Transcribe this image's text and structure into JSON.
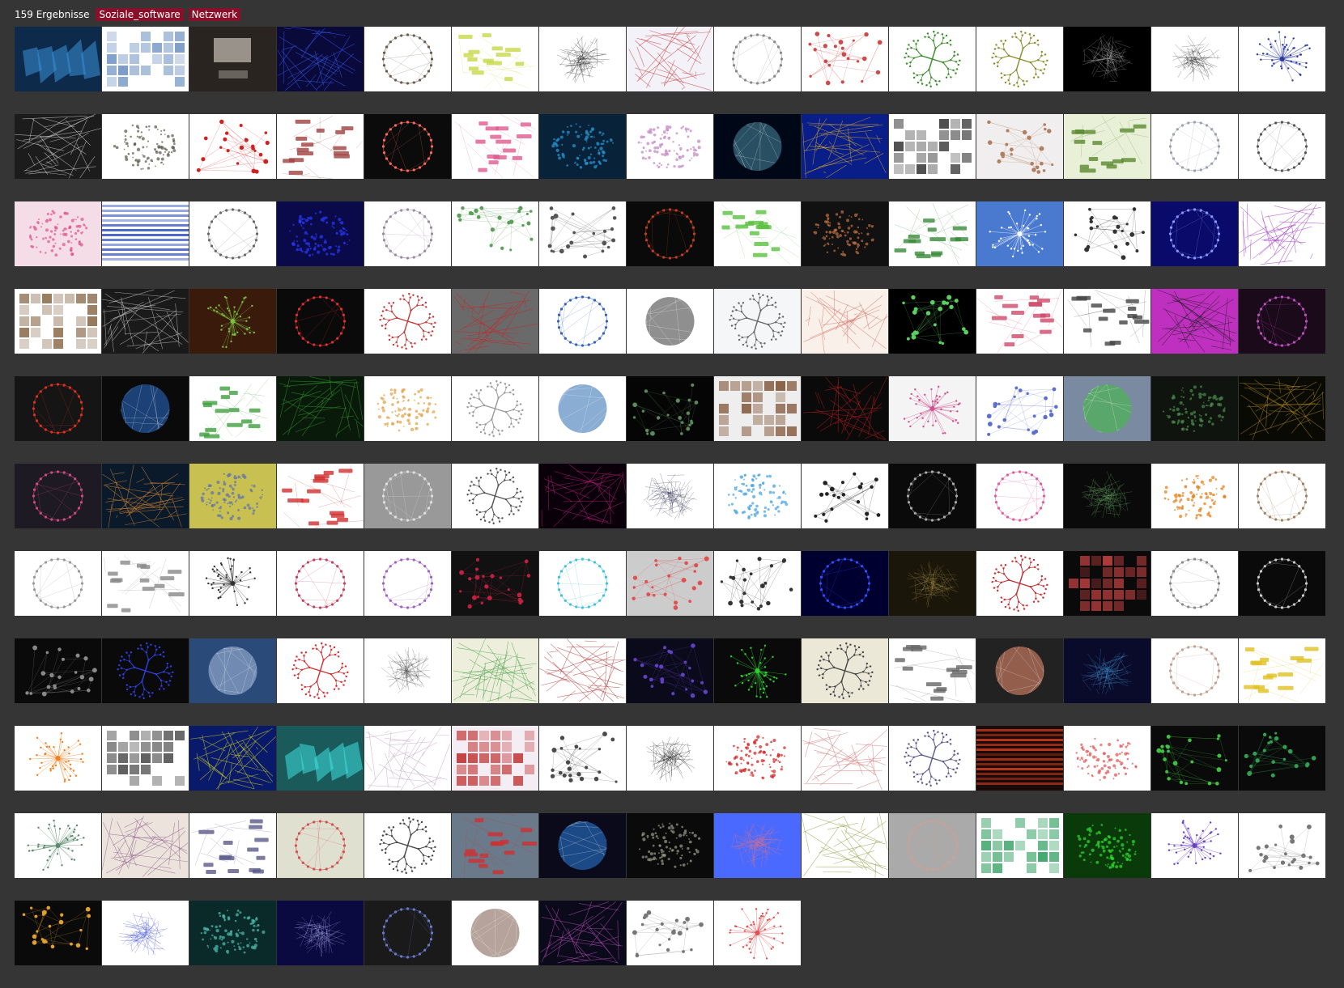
{
  "header": {
    "result_count": "159 Ergebnisse",
    "tags": [
      "Soziale_software",
      "Netzwerk"
    ]
  },
  "grid": {
    "columns": 15,
    "rows": [
      [
        {
          "bg": "#0d2a4a",
          "fg": "#3b8fd8",
          "kind": "blocks"
        },
        {
          "bg": "#ffffff",
          "fg": "#6a8fc0",
          "kind": "mosaic"
        },
        {
          "bg": "#2a2420",
          "fg": "#c9c2b8",
          "kind": "room"
        },
        {
          "bg": "#0a0a3a",
          "fg": "#3a5cff",
          "kind": "lines"
        },
        {
          "bg": "#ffffff",
          "fg": "#6a5a4a",
          "kind": "ring"
        },
        {
          "bg": "#ffffff",
          "fg": "#c8d84a",
          "kind": "boxes"
        },
        {
          "bg": "#ffffff",
          "fg": "#111111",
          "kind": "hairball"
        },
        {
          "bg": "#f2f2f8",
          "fg": "#c03030",
          "kind": "lines"
        },
        {
          "bg": "#ffffff",
          "fg": "#888888",
          "kind": "ring"
        },
        {
          "bg": "#ffffff",
          "fg": "#cc4a4a",
          "kind": "scatter"
        },
        {
          "bg": "#ffffff",
          "fg": "#3a8a2a",
          "kind": "tree"
        },
        {
          "bg": "#ffffff",
          "fg": "#8a8a2a",
          "kind": "tree"
        },
        {
          "bg": "#000000",
          "fg": "#bbbbbb",
          "kind": "hairball"
        },
        {
          "bg": "#ffffff",
          "fg": "#222222",
          "kind": "hairball"
        },
        {
          "bg": "#ffffff",
          "fg": "#2a3aa0",
          "kind": "star"
        }
      ],
      [
        {
          "bg": "#1c1c1c",
          "fg": "#dddddd",
          "kind": "lines"
        },
        {
          "bg": "#ffffff",
          "fg": "#555544",
          "kind": "blob"
        },
        {
          "bg": "#ffffff",
          "fg": "#d02020",
          "kind": "scatter"
        },
        {
          "bg": "#ffffff",
          "fg": "#a04040",
          "kind": "boxes"
        },
        {
          "bg": "#0b0b0b",
          "fg": "#ff6a5a",
          "kind": "ring"
        },
        {
          "bg": "#ffffff",
          "fg": "#e05a90",
          "kind": "boxes"
        },
        {
          "bg": "#08223a",
          "fg": "#2a9ad8",
          "kind": "blob"
        },
        {
          "bg": "#ffffff",
          "fg": "#c080c0",
          "kind": "blob"
        },
        {
          "bg": "#000818",
          "fg": "#4a8aa0",
          "kind": "globe"
        },
        {
          "bg": "#0a1e8a",
          "fg": "#e0b020",
          "kind": "lines"
        },
        {
          "bg": "#ffffff",
          "fg": "#3a3a3a",
          "kind": "mosaic"
        },
        {
          "bg": "#f0eeee",
          "fg": "#b08060",
          "kind": "scatter"
        },
        {
          "bg": "#e8f0d8",
          "fg": "#5a8a30",
          "kind": "boxes"
        },
        {
          "bg": "#ffffff",
          "fg": "#9aa0b0",
          "kind": "ring"
        },
        {
          "bg": "#ffffff",
          "fg": "#555555",
          "kind": "ring"
        }
      ],
      [
        {
          "bg": "#f4dde6",
          "fg": "#e0508a",
          "kind": "blob"
        },
        {
          "bg": "#ffffff",
          "fg": "#3050c0",
          "kind": "stripes"
        },
        {
          "bg": "#ffffff",
          "fg": "#666666",
          "kind": "ring"
        },
        {
          "bg": "#0a0a4a",
          "fg": "#2a3aff",
          "kind": "blob"
        },
        {
          "bg": "#ffffff",
          "fg": "#9a8aa0",
          "kind": "ring"
        },
        {
          "bg": "#ffffff",
          "fg": "#5aa05a",
          "kind": "scatter"
        },
        {
          "bg": "#ffffff",
          "fg": "#555555",
          "kind": "scatter"
        },
        {
          "bg": "#0a0a0a",
          "fg": "#c04020",
          "kind": "ring"
        },
        {
          "bg": "#ffffff",
          "fg": "#5ac040",
          "kind": "boxes"
        },
        {
          "bg": "#111111",
          "fg": "#c07040",
          "kind": "blob"
        },
        {
          "bg": "#ffffff",
          "fg": "#3a8a3a",
          "kind": "boxes"
        },
        {
          "bg": "#4a7ad0",
          "fg": "#ffffff",
          "kind": "star"
        },
        {
          "bg": "#ffffff",
          "fg": "#333333",
          "kind": "scatter"
        },
        {
          "bg": "#0a0a6a",
          "fg": "#8a9aff",
          "kind": "ring"
        },
        {
          "bg": "#ffffff",
          "fg": "#9a30c0",
          "kind": "lines"
        }
      ],
      [
        {
          "bg": "#ffffff",
          "fg": "#8a6a4a",
          "kind": "mosaic"
        },
        {
          "bg": "#1a1a1a",
          "fg": "#cccccc",
          "kind": "lines"
        },
        {
          "bg": "#3a1a0a",
          "fg": "#7ac040",
          "kind": "star"
        },
        {
          "bg": "#0a0a0a",
          "fg": "#e03030",
          "kind": "ring"
        },
        {
          "bg": "#ffffff",
          "fg": "#c03a3a",
          "kind": "tree"
        },
        {
          "bg": "#6a6a6a",
          "fg": "#d02020",
          "kind": "lines"
        },
        {
          "bg": "#ffffff",
          "fg": "#3060c0",
          "kind": "ring"
        },
        {
          "bg": "#ffffff",
          "fg": "#333333",
          "kind": "globe"
        },
        {
          "bg": "#f4f6f8",
          "fg": "#666666",
          "kind": "tree"
        },
        {
          "bg": "#faf0ea",
          "fg": "#d07060",
          "kind": "lines"
        },
        {
          "bg": "#000000",
          "fg": "#5ad060",
          "kind": "scatter"
        },
        {
          "bg": "#ffffff",
          "fg": "#d04a6a",
          "kind": "boxes"
        },
        {
          "bg": "#ffffff",
          "fg": "#444444",
          "kind": "boxes"
        },
        {
          "bg": "#c030c0",
          "fg": "#202020",
          "kind": "lines"
        },
        {
          "bg": "#1a0a1a",
          "fg": "#c050c0",
          "kind": "ring"
        }
      ],
      [
        {
          "bg": "#151515",
          "fg": "#e03020",
          "kind": "ring"
        },
        {
          "bg": "#0a0a0a",
          "fg": "#2a70d0",
          "kind": "globe"
        },
        {
          "bg": "#ffffff",
          "fg": "#40a040",
          "kind": "boxes"
        },
        {
          "bg": "#0a1a0a",
          "fg": "#30a030",
          "kind": "lines"
        },
        {
          "bg": "#ffffff",
          "fg": "#e0a040",
          "kind": "blob"
        },
        {
          "bg": "#ffffff",
          "fg": "#999999",
          "kind": "tree"
        },
        {
          "bg": "#ffffff",
          "fg": "#2a6ab0",
          "kind": "globe"
        },
        {
          "bg": "#050505",
          "fg": "#5a8a5a",
          "kind": "scatter"
        },
        {
          "bg": "#eeeeee",
          "fg": "#7a4a2a",
          "kind": "mosaic"
        },
        {
          "bg": "#0a0a0a",
          "fg": "#c02020",
          "kind": "lines"
        },
        {
          "bg": "#f4f4f4",
          "fg": "#d05090",
          "kind": "star"
        },
        {
          "bg": "#ffffff",
          "fg": "#5a70d0",
          "kind": "scatter"
        },
        {
          "bg": "#7a8aa0",
          "fg": "#40c040",
          "kind": "globe"
        },
        {
          "bg": "#0f140f",
          "fg": "#4a8a4a",
          "kind": "blob"
        },
        {
          "bg": "#0a0a05",
          "fg": "#b08a20",
          "kind": "lines"
        }
      ],
      [
        {
          "bg": "#1e1a24",
          "fg": "#d04a80",
          "kind": "ring"
        },
        {
          "bg": "#0a1a2a",
          "fg": "#e08a30",
          "kind": "lines"
        },
        {
          "bg": "#c8c050",
          "fg": "#5a70b0",
          "kind": "blob"
        },
        {
          "bg": "#ffffff",
          "fg": "#d03030",
          "kind": "boxes"
        },
        {
          "bg": "#999999",
          "fg": "#e0e0e0",
          "kind": "ring"
        },
        {
          "bg": "#ffffff",
          "fg": "#555555",
          "kind": "tree"
        },
        {
          "bg": "#0a000a",
          "fg": "#c02080",
          "kind": "lines"
        },
        {
          "bg": "#ffffff",
          "fg": "#2a2a50",
          "kind": "hairball"
        },
        {
          "bg": "#ffffff",
          "fg": "#40a0e0",
          "kind": "blob"
        },
        {
          "bg": "#ffffff",
          "fg": "#222222",
          "kind": "scatter"
        },
        {
          "bg": "#0a0a0a",
          "fg": "#aaaaaa",
          "kind": "ring"
        },
        {
          "bg": "#ffffff",
          "fg": "#e05aa0",
          "kind": "ring"
        },
        {
          "bg": "#0a0a0a",
          "fg": "#6ab06a",
          "kind": "hairball"
        },
        {
          "bg": "#ffffff",
          "fg": "#e07a10",
          "kind": "blob"
        },
        {
          "bg": "#ffffff",
          "fg": "#a08060",
          "kind": "ring"
        }
      ],
      [
        {
          "bg": "#ffffff",
          "fg": "#999999",
          "kind": "ring"
        },
        {
          "bg": "#ffffff",
          "fg": "#888888",
          "kind": "boxes"
        },
        {
          "bg": "#ffffff",
          "fg": "#333333",
          "kind": "star"
        },
        {
          "bg": "#ffffff",
          "fg": "#c04060",
          "kind": "ring"
        },
        {
          "bg": "#ffffff",
          "fg": "#a060c0",
          "kind": "ring"
        },
        {
          "bg": "#111111",
          "fg": "#c02040",
          "kind": "scatter"
        },
        {
          "bg": "#ffffff",
          "fg": "#40c0e0",
          "kind": "ring"
        },
        {
          "bg": "#cccccc",
          "fg": "#e05050",
          "kind": "scatter"
        },
        {
          "bg": "#ffffff",
          "fg": "#333333",
          "kind": "scatter"
        },
        {
          "bg": "#000030",
          "fg": "#3050ff",
          "kind": "ring"
        },
        {
          "bg": "#1a160a",
          "fg": "#a08a40",
          "kind": "hairball"
        },
        {
          "bg": "#ffffff",
          "fg": "#c03030",
          "kind": "tree"
        },
        {
          "bg": "#0a0a0a",
          "fg": "#c04040",
          "kind": "mosaic"
        },
        {
          "bg": "#ffffff",
          "fg": "#888888",
          "kind": "ring"
        },
        {
          "bg": "#0a0a0a",
          "fg": "#cccccc",
          "kind": "ring"
        }
      ],
      [
        {
          "bg": "#0a0a0a",
          "fg": "#888888",
          "kind": "scatter"
        },
        {
          "bg": "#0a0a0a",
          "fg": "#3040e0",
          "kind": "tree"
        },
        {
          "bg": "#2a4a7a",
          "fg": "#aac0e0",
          "kind": "globe"
        },
        {
          "bg": "#ffffff",
          "fg": "#d03030",
          "kind": "tree"
        },
        {
          "bg": "#ffffff",
          "fg": "#444444",
          "kind": "hairball"
        },
        {
          "bg": "#eeeedd",
          "fg": "#40a040",
          "kind": "lines"
        },
        {
          "bg": "#ffffff",
          "fg": "#b03030",
          "kind": "lines"
        },
        {
          "bg": "#0a0a1a",
          "fg": "#6040c0",
          "kind": "scatter"
        },
        {
          "bg": "#0a0a0a",
          "fg": "#30d030",
          "kind": "star"
        },
        {
          "bg": "#ece8d8",
          "fg": "#444444",
          "kind": "tree"
        },
        {
          "bg": "#ffffff",
          "fg": "#666666",
          "kind": "boxes"
        },
        {
          "bg": "#222222",
          "fg": "#f09070",
          "kind": "globe"
        },
        {
          "bg": "#0a0a2a",
          "fg": "#40a0e0",
          "kind": "hairball"
        },
        {
          "bg": "#ffffff",
          "fg": "#c0a090",
          "kind": "ring"
        },
        {
          "bg": "#ffffff",
          "fg": "#e0c020",
          "kind": "boxes"
        }
      ],
      [
        {
          "bg": "#ffffff",
          "fg": "#f08020",
          "kind": "star"
        },
        {
          "bg": "#ffffff",
          "fg": "#333333",
          "kind": "mosaic"
        },
        {
          "bg": "#0a1a6a",
          "fg": "#e0e020",
          "kind": "lines"
        },
        {
          "bg": "#1a5a5a",
          "fg": "#40e0e0",
          "kind": "blocks"
        },
        {
          "bg": "#ffffff",
          "fg": "#c0a0c0",
          "kind": "lines"
        },
        {
          "bg": "#f4eef4",
          "fg": "#c03030",
          "kind": "mosaic"
        },
        {
          "bg": "#ffffff",
          "fg": "#4a4a4a",
          "kind": "scatter"
        },
        {
          "bg": "#ffffff",
          "fg": "#111111",
          "kind": "hairball"
        },
        {
          "bg": "#ffffff",
          "fg": "#d02020",
          "kind": "blob"
        },
        {
          "bg": "#ffffff",
          "fg": "#d07070",
          "kind": "lines"
        },
        {
          "bg": "#ffffff",
          "fg": "#5a5a8a",
          "kind": "tree"
        },
        {
          "bg": "#1a0a0a",
          "fg": "#e04020",
          "kind": "stripes"
        },
        {
          "bg": "#ffffff",
          "fg": "#e05050",
          "kind": "blob"
        },
        {
          "bg": "#0a0a0a",
          "fg": "#40c040",
          "kind": "scatter"
        },
        {
          "bg": "#0a0a0a",
          "fg": "#30a050",
          "kind": "scatter"
        }
      ],
      [
        {
          "bg": "#ffffff",
          "fg": "#5a8a6a",
          "kind": "star"
        },
        {
          "bg": "#ece4dc",
          "fg": "#8a5a8a",
          "kind": "lines"
        },
        {
          "bg": "#ffffff",
          "fg": "#5a5a8a",
          "kind": "boxes"
        },
        {
          "bg": "#e0e0d0",
          "fg": "#d05050",
          "kind": "ring"
        },
        {
          "bg": "#ffffff",
          "fg": "#444444",
          "kind": "tree"
        },
        {
          "bg": "#6a7a8a",
          "fg": "#d03030",
          "kind": "boxes"
        },
        {
          "bg": "#0a0a1a",
          "fg": "#2a80e0",
          "kind": "globe"
        },
        {
          "bg": "#0a0a0a",
          "fg": "#9a9a8a",
          "kind": "blob"
        },
        {
          "bg": "#4a6aff",
          "fg": "#f07070",
          "kind": "hairball"
        },
        {
          "bg": "#ffffff",
          "fg": "#8a9a3a",
          "kind": "lines"
        },
        {
          "bg": "#aaaaaa",
          "fg": "#d0a090",
          "kind": "ring"
        },
        {
          "bg": "#ffffff",
          "fg": "#30a060",
          "kind": "mosaic"
        },
        {
          "bg": "#0a3a0a",
          "fg": "#30e030",
          "kind": "blob"
        },
        {
          "bg": "#ffffff",
          "fg": "#6a40c0",
          "kind": "star"
        },
        {
          "bg": "#ffffff",
          "fg": "#777777",
          "kind": "scatter"
        }
      ],
      [
        {
          "bg": "#0a0a0a",
          "fg": "#e0a030",
          "kind": "scatter"
        },
        {
          "bg": "#ffffff",
          "fg": "#2a3ad0",
          "kind": "hairball"
        },
        {
          "bg": "#0a2a2a",
          "fg": "#50c0b0",
          "kind": "blob"
        },
        {
          "bg": "#0a0a40",
          "fg": "#aaaaee",
          "kind": "hairball"
        },
        {
          "bg": "#1a1a1a",
          "fg": "#6a7ad0",
          "kind": "ring"
        },
        {
          "bg": "#ffffff",
          "fg": "#7a5a4a",
          "kind": "globe"
        },
        {
          "bg": "#0a0a1a",
          "fg": "#c050c0",
          "kind": "lines"
        },
        {
          "bg": "#ffffff",
          "fg": "#777777",
          "kind": "scatter"
        },
        {
          "bg": "#ffffff",
          "fg": "#e05050",
          "kind": "star"
        }
      ]
    ]
  }
}
